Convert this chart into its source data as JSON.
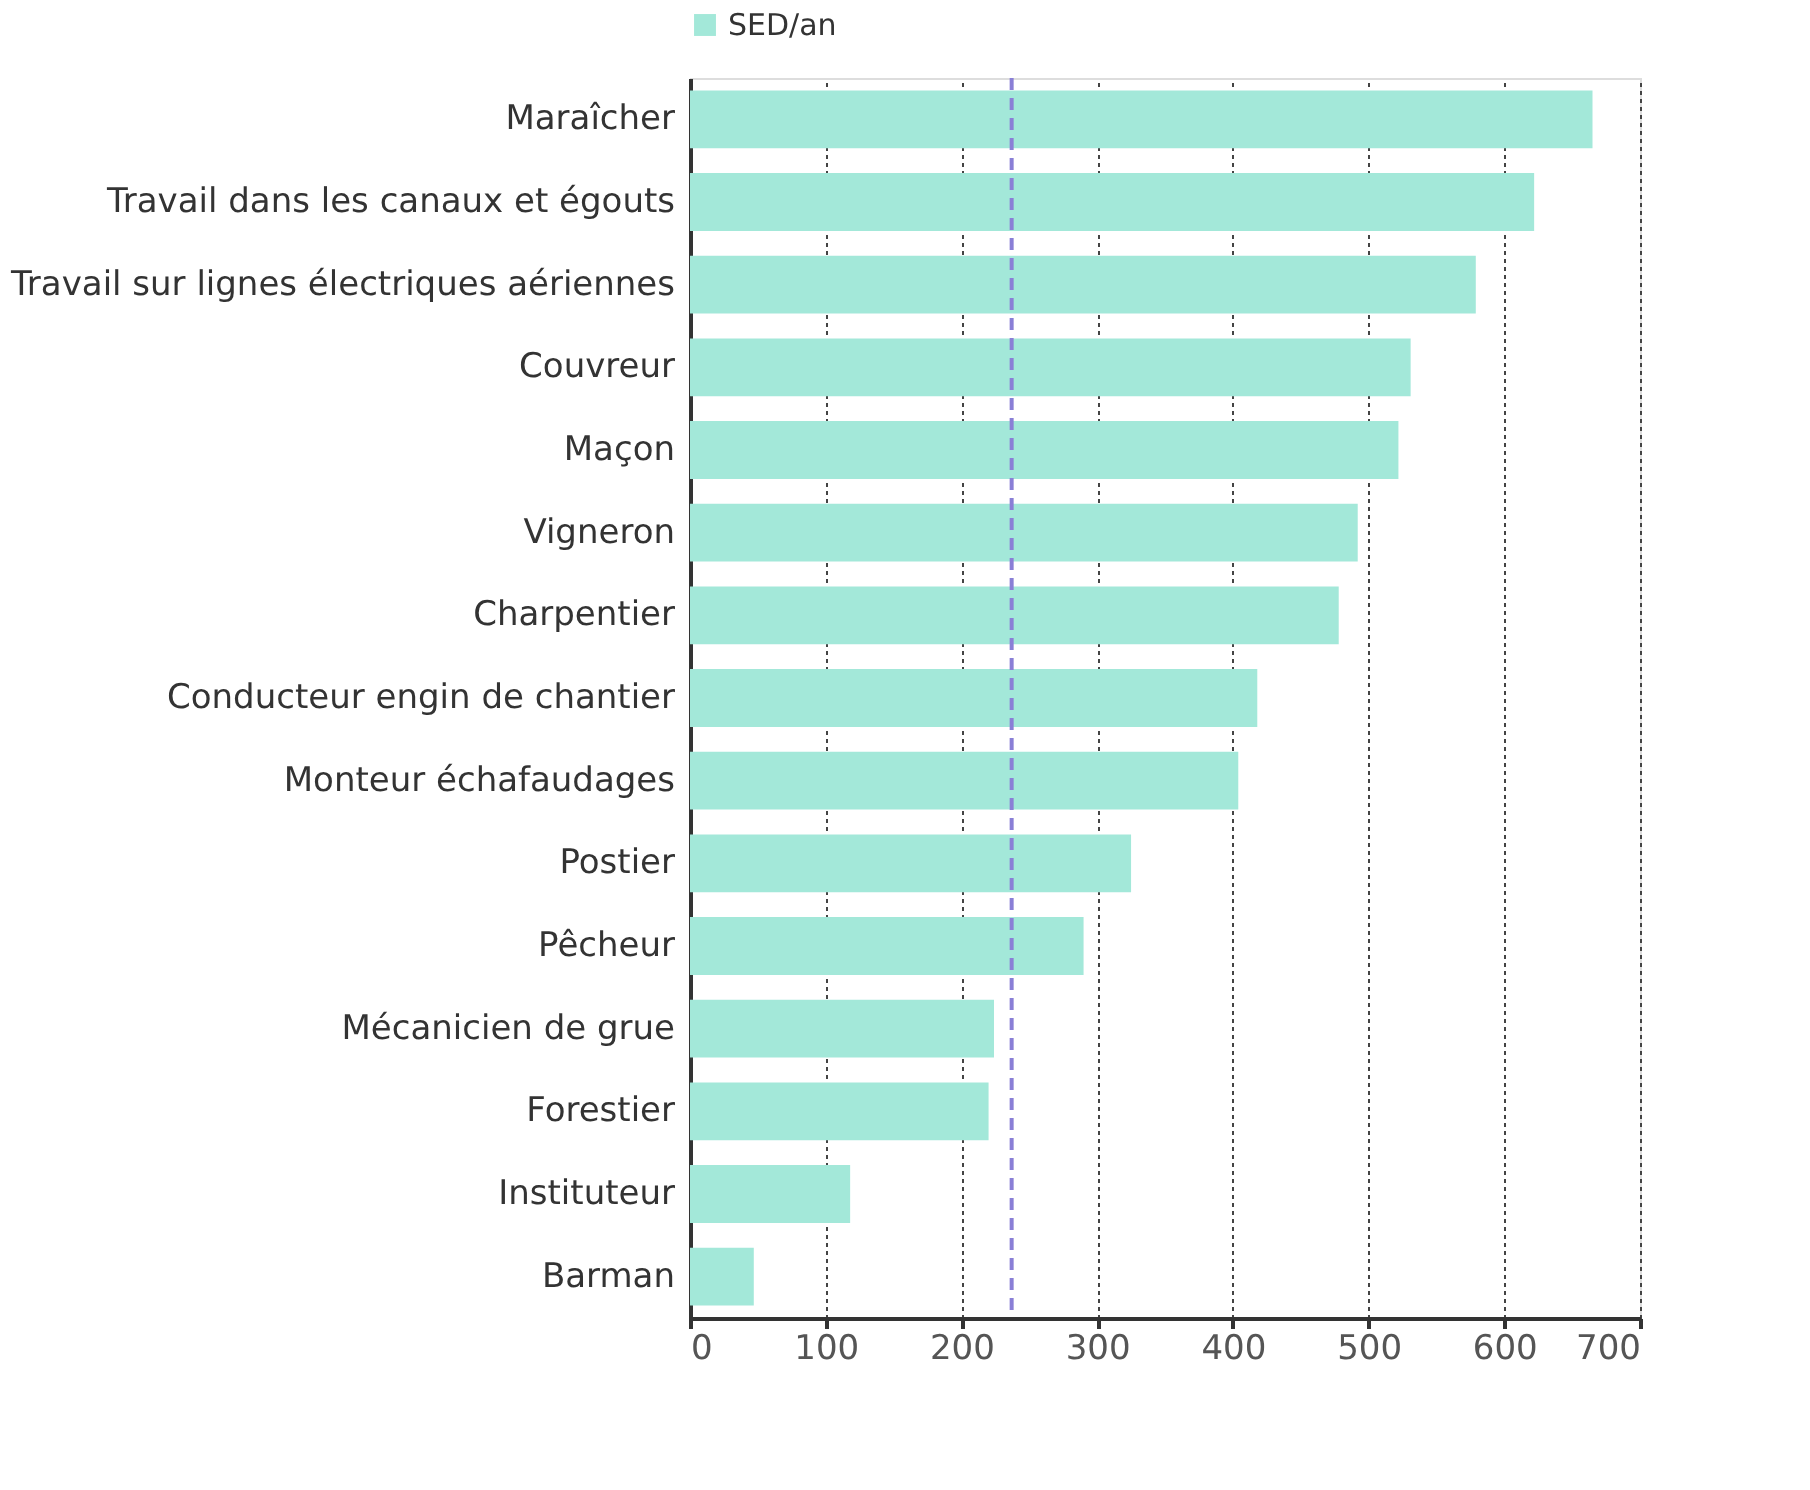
{
  "chart_data": {
    "type": "bar",
    "orientation": "horizontal",
    "categories": [
      "Maraîcher",
      "Travail dans les canaux et égouts",
      "Travail sur lignes électriques aériennes",
      "Couvreur",
      "Maçon",
      "Vigneron",
      "Charpentier",
      "Conducteur engin de chantier",
      "Monteur échafaudages",
      "Postier",
      "Pêcheur",
      "Mécanicien de grue",
      "Forestier",
      "Instituteur",
      "Barman"
    ],
    "series": [
      {
        "name": "SED/an",
        "color": "#a3e8d9",
        "values": [
          665,
          622,
          579,
          531,
          522,
          492,
          478,
          418,
          404,
          325,
          290,
          224,
          220,
          118,
          47
        ]
      }
    ],
    "xlim": [
      0,
      700
    ],
    "xticks": [
      0,
      100,
      200,
      300,
      400,
      500,
      600,
      700
    ],
    "grid": "x",
    "legend": "top",
    "ref_lines": [
      {
        "axis": "x",
        "value": 237,
        "color": "#8a7fd6",
        "line_style": "dashed"
      }
    ]
  }
}
